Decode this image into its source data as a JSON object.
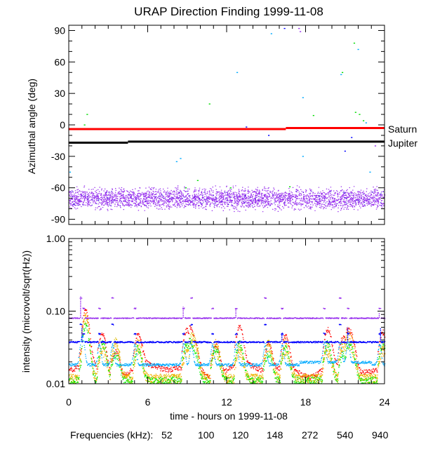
{
  "chart_data": [
    {
      "type": "scatter",
      "title": "URAP Direction Finding  1999-11-08",
      "ylabel": "Azimuthal angle (deg)",
      "xlim": [
        0,
        24
      ],
      "ylim": [
        -95,
        95
      ],
      "yticks": [
        90,
        60,
        30,
        0,
        -30,
        -60,
        -90
      ],
      "reference_lines": [
        {
          "name": "Saturn",
          "color": "#ff0000",
          "y_start": -4,
          "y_end": -3,
          "step_at": 16.5
        },
        {
          "name": "Jupiter",
          "color": "#000000",
          "y_start": -17,
          "y_end": -16,
          "step_at": 4.5
        }
      ],
      "main_band": {
        "color": "#9932ee",
        "center": -70,
        "spread": 7,
        "x_range": [
          0,
          24
        ]
      },
      "scatter_points": [
        {
          "x": 0.1,
          "y": -45,
          "color": "#00aaff"
        },
        {
          "x": 1.2,
          "y": 0,
          "color": "#00dd00"
        },
        {
          "x": 1.4,
          "y": 10,
          "color": "#00dd00"
        },
        {
          "x": 8.2,
          "y": -35,
          "color": "#00aaff"
        },
        {
          "x": 8.5,
          "y": -32,
          "color": "#00aaff"
        },
        {
          "x": 9.8,
          "y": -53,
          "color": "#00dd00"
        },
        {
          "x": 10.7,
          "y": 20,
          "color": "#00dd00"
        },
        {
          "x": 12.8,
          "y": 50,
          "color": "#00aaff"
        },
        {
          "x": 13.5,
          "y": -2,
          "color": "#0000ff"
        },
        {
          "x": 15.2,
          "y": -10,
          "color": "#0000ff"
        },
        {
          "x": 15.4,
          "y": 87,
          "color": "#00aaff"
        },
        {
          "x": 16.4,
          "y": 92,
          "color": "#0000ff"
        },
        {
          "x": 17.5,
          "y": 92,
          "color": "#9932ee"
        },
        {
          "x": 17.6,
          "y": 89,
          "color": "#9932ee"
        },
        {
          "x": 17.8,
          "y": 26,
          "color": "#00aaff"
        },
        {
          "x": 17.8,
          "y": -30,
          "color": "#00aaff"
        },
        {
          "x": 18.6,
          "y": 9,
          "color": "#00dd00"
        },
        {
          "x": 20.8,
          "y": 50,
          "color": "#00dd00"
        },
        {
          "x": 20.7,
          "y": 48,
          "color": "#00aaff"
        },
        {
          "x": 21.0,
          "y": -25,
          "color": "#0000ff"
        },
        {
          "x": 21.7,
          "y": 78,
          "color": "#00dd00"
        },
        {
          "x": 22.0,
          "y": 72,
          "color": "#00aaff"
        },
        {
          "x": 21.8,
          "y": 12,
          "color": "#00dd00"
        },
        {
          "x": 22.1,
          "y": 10,
          "color": "#00dd00"
        },
        {
          "x": 22.4,
          "y": 4,
          "color": "#00dd00"
        },
        {
          "x": 22.6,
          "y": 2,
          "color": "#00aaff"
        },
        {
          "x": 21.5,
          "y": -12,
          "color": "#0000ff"
        },
        {
          "x": 22.9,
          "y": -45,
          "color": "#00aaff"
        },
        {
          "x": 23.3,
          "y": -20,
          "color": "#9932ee"
        },
        {
          "x": 8.9,
          "y": -60,
          "color": "#00dd00"
        },
        {
          "x": 12.3,
          "y": -60,
          "color": "#00dd00"
        },
        {
          "x": 16.8,
          "y": -59,
          "color": "#00dd00"
        }
      ]
    },
    {
      "type": "line",
      "ylabel": "intensity (microvolt/sqrt(Hz))",
      "xlabel": "time - hours on 1999-11-08",
      "xlim": [
        0,
        24
      ],
      "ylim": [
        0.01,
        1.0
      ],
      "yscale": "log",
      "xticks": [
        0,
        6,
        12,
        18,
        24
      ],
      "yticks": [
        "1.00",
        "0.10",
        "0.01"
      ],
      "legend_title": "Frequencies (kHz):",
      "legend_placement": "bottom",
      "series": [
        {
          "name": "52",
          "color": "#ff0000",
          "base": 0.016,
          "noise": 0.08
        },
        {
          "name": "100",
          "color": "#ffaa00",
          "base": 0.012,
          "noise": 0.15
        },
        {
          "name": "120",
          "color": "#ddbb00",
          "base": 0.012,
          "noise": 0.15
        },
        {
          "name": "148",
          "color": "#00ee00",
          "base": 0.0112,
          "noise": 0.12
        },
        {
          "name": "272",
          "color": "#00aaff",
          "base": 0.0185,
          "noise": 0.04
        },
        {
          "name": "540",
          "color": "#0000ff",
          "base": 0.038,
          "noise": 0.025
        },
        {
          "name": "940",
          "color": "#9932ee",
          "base": 0.081,
          "noise": 0.015
        }
      ],
      "spike_times": [
        0.9,
        1.1,
        2.3,
        3.3,
        5.0,
        8.7,
        9.3,
        10.9,
        12.7,
        14.9,
        16.2,
        19.4,
        20.6,
        21.2,
        23.6
      ]
    }
  ]
}
